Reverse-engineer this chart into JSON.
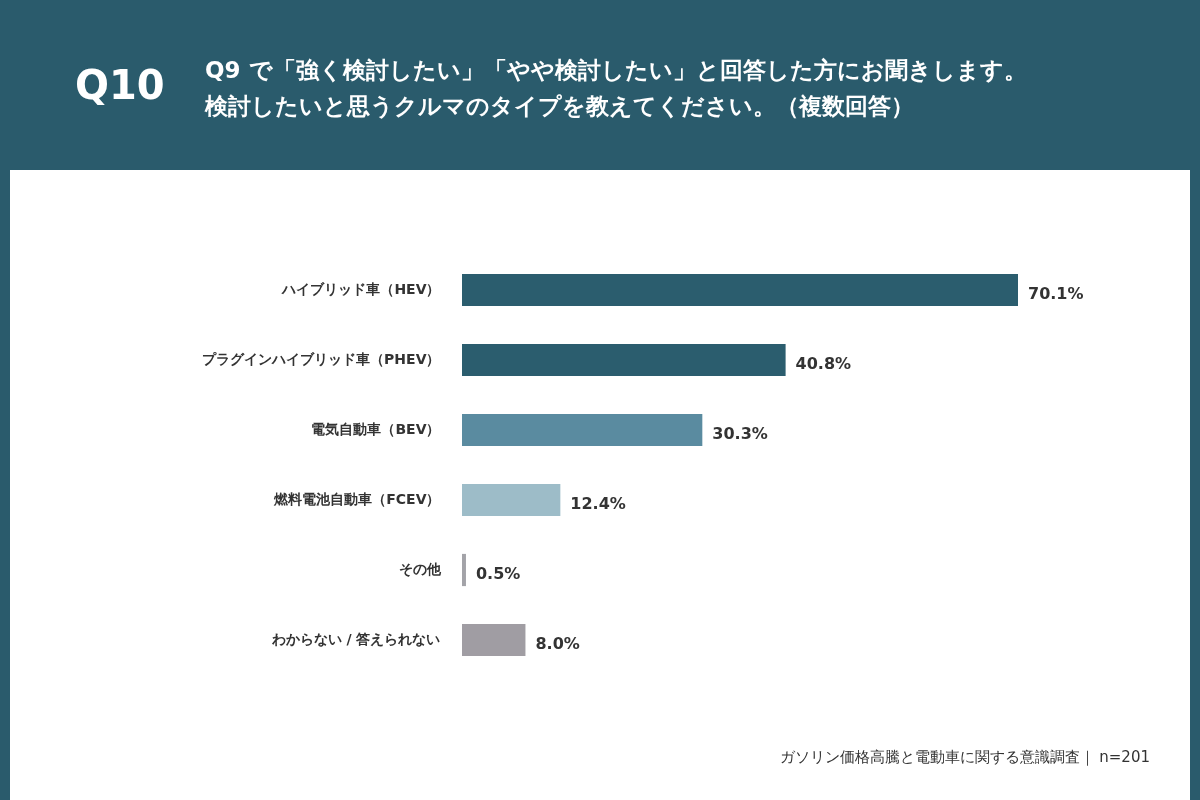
{
  "chart_data": {
    "type": "bar",
    "orientation": "horizontal",
    "title": "Q10",
    "subtitle": "Q9 で「強く検討したい」「やや検討したい」と回答した方にお聞きします。検討したいと思うクルマのタイプを教えてください。（複数回答）",
    "categories": [
      "ハイブリッド車（HEV）",
      "プラグインハイブリッド車（PHEV）",
      "電気自動車（BEV）",
      "燃料電池自動車（FCEV）",
      "その他",
      "わからない / 答えられない"
    ],
    "values": [
      70.1,
      40.8,
      30.3,
      12.4,
      0.5,
      8.0
    ],
    "value_labels": [
      "70.1%",
      "40.8%",
      "30.3%",
      "12.4%",
      "0.5%",
      "8.0%"
    ],
    "colors": [
      "#2b5d6e",
      "#2b5d6e",
      "#5a8ba0",
      "#9dbcc8",
      "#a3a3a8",
      "#a09da3"
    ],
    "annotations": [
      "ガソリン価格高騰と電動車に関する意識調査｜ n=201"
    ]
  }
}
